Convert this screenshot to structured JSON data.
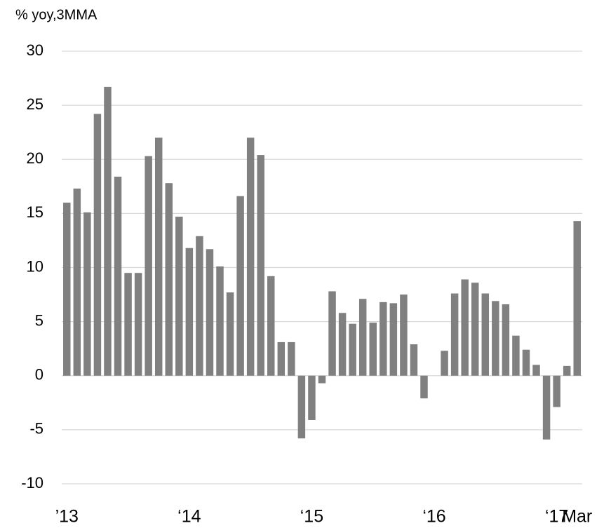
{
  "chart_data": {
    "type": "bar",
    "title": "% yoy,3MMA",
    "categories": [
      "’13",
      null,
      null,
      null,
      null,
      null,
      null,
      null,
      null,
      null,
      null,
      null,
      "‘14",
      null,
      null,
      null,
      null,
      null,
      null,
      null,
      null,
      null,
      null,
      null,
      "‘15",
      null,
      null,
      null,
      null,
      null,
      null,
      null,
      null,
      null,
      null,
      null,
      "‘16",
      null,
      null,
      null,
      null,
      null,
      null,
      null,
      null,
      null,
      null,
      null,
      "‘17",
      null,
      "Mar"
    ],
    "values": [
      16.0,
      17.3,
      15.1,
      24.2,
      26.7,
      18.4,
      9.5,
      9.5,
      20.3,
      22.0,
      17.8,
      14.7,
      11.8,
      12.9,
      11.7,
      10.1,
      7.7,
      16.6,
      22.0,
      20.4,
      9.2,
      3.1,
      3.1,
      -5.8,
      -4.1,
      -0.7,
      7.8,
      5.8,
      4.8,
      7.1,
      4.9,
      6.8,
      6.7,
      7.5,
      2.9,
      -2.1,
      0,
      2.3,
      7.6,
      8.9,
      8.6,
      7.6,
      6.9,
      6.6,
      3.7,
      2.4,
      1.0,
      -5.9,
      -2.9,
      0.9,
      14.3
    ],
    "color": "#808080",
    "ylim": [
      -10,
      30
    ],
    "yticks": [
      -10,
      -5,
      0,
      5,
      10,
      15,
      20,
      25,
      30
    ],
    "grid": true
  }
}
